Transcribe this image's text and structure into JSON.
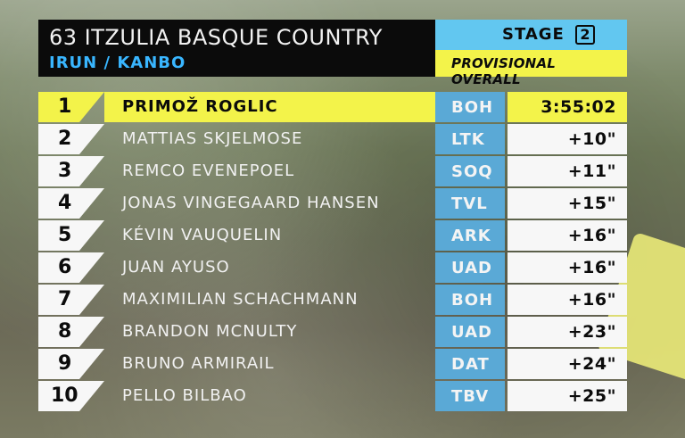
{
  "header": {
    "race_title": "63 ITZULIA BASQUE COUNTRY",
    "route": "IRUN / KANBO",
    "stage_label": "STAGE",
    "stage_number": "2",
    "classification": "PROVISIONAL OVERALL"
  },
  "standings": [
    {
      "pos": "1",
      "name": "PRIMOŽ ROGLIC",
      "team": "BOH",
      "time": "3:55:02"
    },
    {
      "pos": "2",
      "name": "MATTIAS SKJELMOSE",
      "team": "LTK",
      "time": "+10\""
    },
    {
      "pos": "3",
      "name": "REMCO EVENEPOEL",
      "team": "SOQ",
      "time": "+11\""
    },
    {
      "pos": "4",
      "name": "JONAS VINGEGAARD HANSEN",
      "team": "TVL",
      "time": "+15\""
    },
    {
      "pos": "5",
      "name": "KÉVIN VAUQUELIN",
      "team": "ARK",
      "time": "+16\""
    },
    {
      "pos": "6",
      "name": "JUAN AYUSO",
      "team": "UAD",
      "time": "+16\""
    },
    {
      "pos": "7",
      "name": "MAXIMILIAN SCHACHMANN",
      "team": "BOH",
      "time": "+16\""
    },
    {
      "pos": "8",
      "name": "BRANDON MCNULTY",
      "team": "UAD",
      "time": "+23\""
    },
    {
      "pos": "9",
      "name": "BRUNO ARMIRAIL",
      "team": "DAT",
      "time": "+24\""
    },
    {
      "pos": "10",
      "name": "PELLO BILBAO",
      "team": "TBV",
      "time": "+25\""
    }
  ],
  "colors": {
    "header_bg": "#0b0b0b",
    "title_text": "#f2f2f2",
    "route_text": "#39b6ff",
    "stage_top": "#62c7f0",
    "leader_yellow": "#f3f34a",
    "team_blue": "#5aa9d6",
    "row_white": "#f7f7f7"
  }
}
